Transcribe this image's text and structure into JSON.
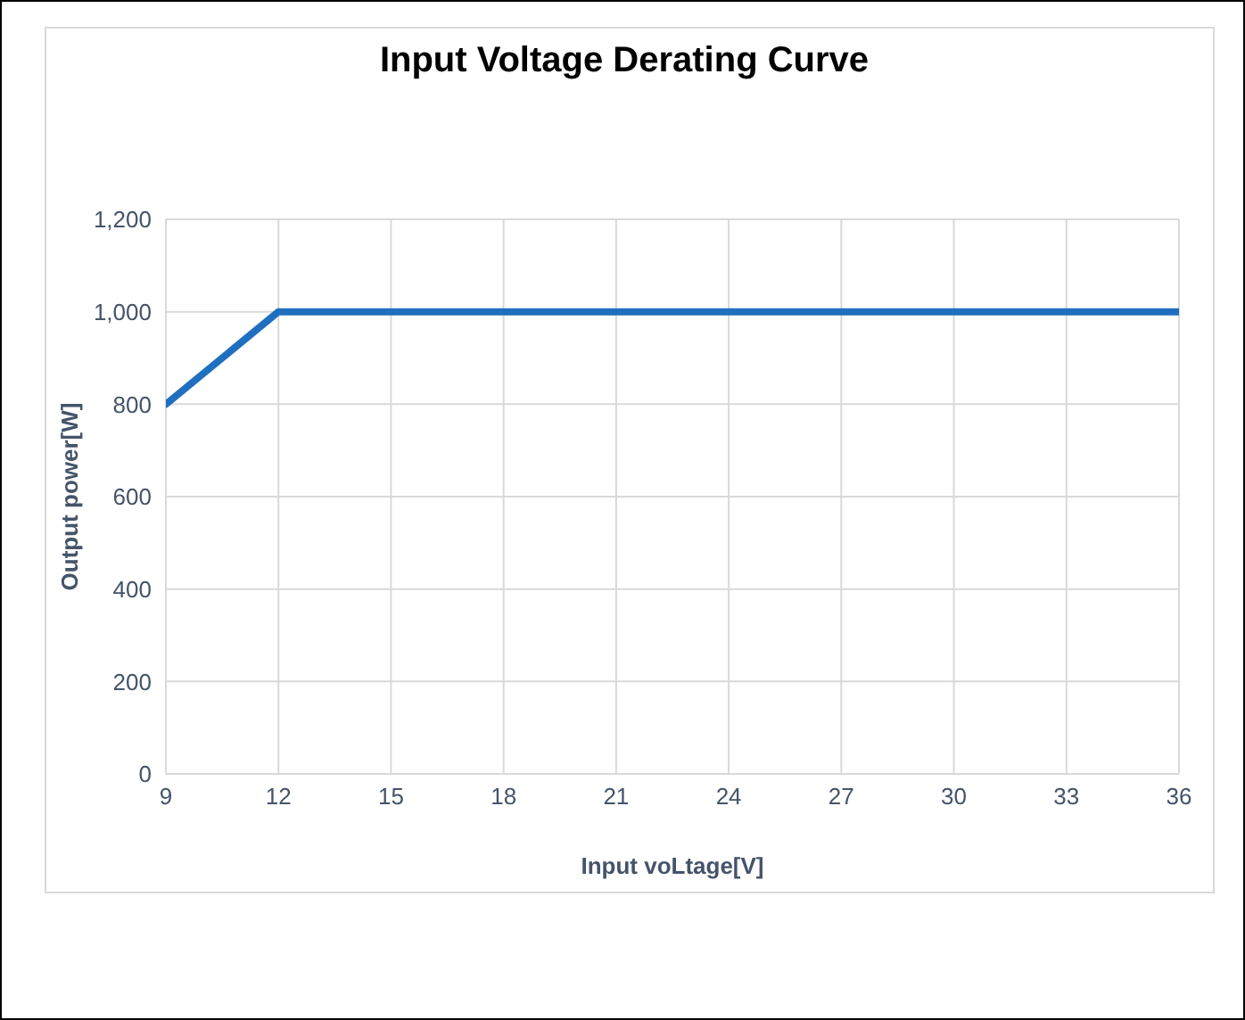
{
  "chart_data": {
    "type": "line",
    "title": "Input Voltage Derating Curve",
    "xlabel": "Input voLtage[V]",
    "ylabel": "Output power[W]",
    "x": [
      9,
      12,
      36
    ],
    "series": [
      {
        "color": "#1f6fbf",
        "values": [
          800,
          1000,
          1000
        ]
      }
    ],
    "xlim": [
      9,
      36
    ],
    "xticks": [
      9,
      12,
      15,
      18,
      21,
      24,
      27,
      30,
      33,
      36
    ],
    "ylim": [
      0,
      1200
    ],
    "yticks": [
      0,
      200,
      400,
      600,
      800,
      {
        "value": 1000,
        "label": "1,000"
      },
      {
        "value": 1200,
        "label": "1,200"
      }
    ],
    "grid": true,
    "marker": "none",
    "line_style": "solid"
  }
}
